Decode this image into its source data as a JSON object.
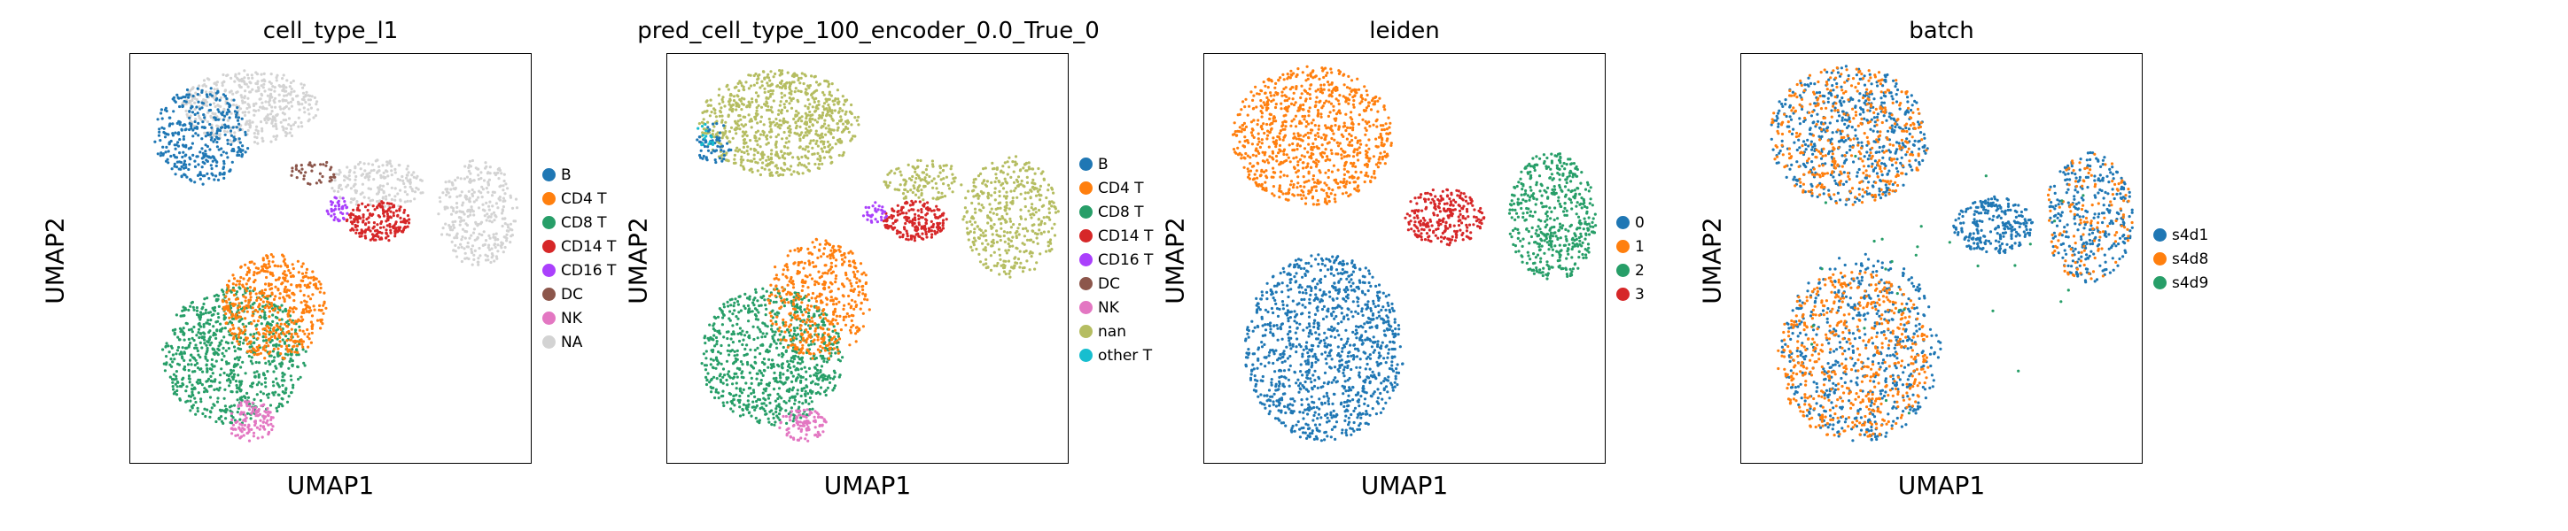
{
  "chart_data": [
    {
      "type": "scatter",
      "title": "cell_type_l1",
      "xlabel": "UMAP1",
      "ylabel": "UMAP2",
      "legend": [
        {
          "label": "B",
          "color": "#1f77b4"
        },
        {
          "label": "CD4 T",
          "color": "#ff7f0e"
        },
        {
          "label": "CD8 T",
          "color": "#279e68"
        },
        {
          "label": "CD14 T",
          "color": "#d62728"
        },
        {
          "label": "CD16 T",
          "color": "#aa40fc"
        },
        {
          "label": "DC",
          "color": "#8c564b"
        },
        {
          "label": "NK",
          "color": "#e377c2"
        },
        {
          "label": "NA",
          "color": "#d3d3d3"
        }
      ],
      "regions": [
        {
          "cat": 7,
          "cx": 0.3,
          "cy": 0.13,
          "rx": 0.17,
          "ry": 0.09,
          "n": 450
        },
        {
          "cat": 0,
          "cx": 0.18,
          "cy": 0.2,
          "rx": 0.12,
          "ry": 0.12,
          "n": 360
        },
        {
          "cat": 7,
          "cx": 0.62,
          "cy": 0.32,
          "rx": 0.12,
          "ry": 0.06,
          "n": 180
        },
        {
          "cat": 7,
          "cx": 0.87,
          "cy": 0.39,
          "rx": 0.1,
          "ry": 0.13,
          "n": 320
        },
        {
          "cat": 3,
          "cx": 0.62,
          "cy": 0.41,
          "rx": 0.08,
          "ry": 0.05,
          "n": 200
        },
        {
          "cat": 4,
          "cx": 0.52,
          "cy": 0.38,
          "rx": 0.03,
          "ry": 0.03,
          "n": 40
        },
        {
          "cat": 5,
          "cx": 0.46,
          "cy": 0.29,
          "rx": 0.06,
          "ry": 0.03,
          "n": 40
        },
        {
          "cat": 2,
          "cx": 0.26,
          "cy": 0.74,
          "rx": 0.18,
          "ry": 0.17,
          "n": 800
        },
        {
          "cat": 1,
          "cx": 0.36,
          "cy": 0.62,
          "rx": 0.13,
          "ry": 0.13,
          "n": 500
        },
        {
          "cat": 6,
          "cx": 0.3,
          "cy": 0.9,
          "rx": 0.06,
          "ry": 0.05,
          "n": 120
        }
      ]
    },
    {
      "type": "scatter",
      "title": "pred_cell_type_100_encoder_0.0_True_0",
      "xlabel": "UMAP1",
      "ylabel": "UMAP2",
      "legend": [
        {
          "label": "B",
          "color": "#1f77b4"
        },
        {
          "label": "CD4 T",
          "color": "#ff7f0e"
        },
        {
          "label": "CD8 T",
          "color": "#279e68"
        },
        {
          "label": "CD14 T",
          "color": "#d62728"
        },
        {
          "label": "CD16 T",
          "color": "#aa40fc"
        },
        {
          "label": "DC",
          "color": "#8c564b"
        },
        {
          "label": "NK",
          "color": "#e377c2"
        },
        {
          "label": "nan",
          "color": "#b5bd61"
        },
        {
          "label": "other T",
          "color": "#17becf"
        }
      ],
      "regions": [
        {
          "cat": 7,
          "cx": 0.28,
          "cy": 0.17,
          "rx": 0.2,
          "ry": 0.13,
          "n": 800
        },
        {
          "cat": 7,
          "cx": 0.86,
          "cy": 0.4,
          "rx": 0.12,
          "ry": 0.15,
          "n": 420
        },
        {
          "cat": 7,
          "cx": 0.64,
          "cy": 0.31,
          "rx": 0.1,
          "ry": 0.05,
          "n": 120
        },
        {
          "cat": 0,
          "cx": 0.12,
          "cy": 0.22,
          "rx": 0.05,
          "ry": 0.05,
          "n": 60
        },
        {
          "cat": 3,
          "cx": 0.62,
          "cy": 0.41,
          "rx": 0.08,
          "ry": 0.05,
          "n": 200
        },
        {
          "cat": 4,
          "cx": 0.52,
          "cy": 0.39,
          "rx": 0.03,
          "ry": 0.03,
          "n": 30
        },
        {
          "cat": 2,
          "cx": 0.26,
          "cy": 0.74,
          "rx": 0.18,
          "ry": 0.17,
          "n": 800
        },
        {
          "cat": 1,
          "cx": 0.38,
          "cy": 0.6,
          "rx": 0.13,
          "ry": 0.15,
          "n": 450
        },
        {
          "cat": 6,
          "cx": 0.34,
          "cy": 0.91,
          "rx": 0.06,
          "ry": 0.04,
          "n": 100
        },
        {
          "cat": 8,
          "cx": 0.1,
          "cy": 0.2,
          "rx": 0.03,
          "ry": 0.03,
          "n": 15
        }
      ]
    },
    {
      "type": "scatter",
      "title": "leiden",
      "xlabel": "UMAP1",
      "ylabel": "UMAP2",
      "legend": [
        {
          "label": "0",
          "color": "#1f77b4"
        },
        {
          "label": "1",
          "color": "#ff7f0e"
        },
        {
          "label": "2",
          "color": "#279e68"
        },
        {
          "label": "3",
          "color": "#d62728"
        }
      ],
      "regions": [
        {
          "cat": 1,
          "cx": 0.27,
          "cy": 0.2,
          "rx": 0.2,
          "ry": 0.17,
          "n": 900
        },
        {
          "cat": 0,
          "cx": 0.3,
          "cy": 0.72,
          "rx": 0.2,
          "ry": 0.23,
          "n": 1100
        },
        {
          "cat": 2,
          "cx": 0.87,
          "cy": 0.4,
          "rx": 0.11,
          "ry": 0.16,
          "n": 480
        },
        {
          "cat": 3,
          "cx": 0.6,
          "cy": 0.4,
          "rx": 0.1,
          "ry": 0.07,
          "n": 260
        }
      ]
    },
    {
      "type": "scatter",
      "title": "batch",
      "xlabel": "UMAP1",
      "ylabel": "UMAP2",
      "legend": [
        {
          "label": "s4d1",
          "color": "#1f77b4"
        },
        {
          "label": "s4d8",
          "color": "#ff7f0e"
        },
        {
          "label": "s4d9",
          "color": "#279e68"
        }
      ],
      "regions": [
        {
          "cat": 0,
          "cx": 0.27,
          "cy": 0.2,
          "rx": 0.2,
          "ry": 0.17,
          "n": 520
        },
        {
          "cat": 1,
          "cx": 0.27,
          "cy": 0.2,
          "rx": 0.2,
          "ry": 0.17,
          "n": 380
        },
        {
          "cat": 0,
          "cx": 0.3,
          "cy": 0.72,
          "rx": 0.2,
          "ry": 0.23,
          "n": 550
        },
        {
          "cat": 1,
          "cx": 0.28,
          "cy": 0.74,
          "rx": 0.19,
          "ry": 0.21,
          "n": 550
        },
        {
          "cat": 0,
          "cx": 0.63,
          "cy": 0.42,
          "rx": 0.1,
          "ry": 0.07,
          "n": 240
        },
        {
          "cat": 0,
          "cx": 0.87,
          "cy": 0.4,
          "rx": 0.11,
          "ry": 0.16,
          "n": 300
        },
        {
          "cat": 1,
          "cx": 0.87,
          "cy": 0.4,
          "rx": 0.11,
          "ry": 0.16,
          "n": 120
        },
        {
          "cat": 2,
          "cx": 0.5,
          "cy": 0.5,
          "rx": 0.4,
          "ry": 0.4,
          "n": 30
        }
      ]
    }
  ]
}
